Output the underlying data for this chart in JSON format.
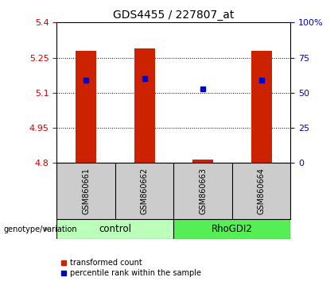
{
  "title": "GDS4455 / 227807_at",
  "samples": [
    "GSM860661",
    "GSM860662",
    "GSM860663",
    "GSM860664"
  ],
  "groups": [
    "control",
    "control",
    "RhoGDI2",
    "RhoGDI2"
  ],
  "group_labels": [
    "control",
    "RhoGDI2"
  ],
  "group_colors_light": [
    "#bbffbb",
    "#55ee55"
  ],
  "bar_bottom": 4.8,
  "bar_tops": [
    5.28,
    5.29,
    4.815,
    5.28
  ],
  "percentile_values": [
    5.155,
    5.16,
    5.115,
    5.155
  ],
  "ylim_left": [
    4.8,
    5.4
  ],
  "ylim_right": [
    0,
    100
  ],
  "yticks_left": [
    4.8,
    4.95,
    5.1,
    5.25,
    5.4
  ],
  "yticks_right": [
    0,
    25,
    50,
    75,
    100
  ],
  "ytick_labels_left": [
    "4.8",
    "4.95",
    "5.1",
    "5.25",
    "5.4"
  ],
  "ytick_labels_right": [
    "0",
    "25",
    "50",
    "75",
    "100%"
  ],
  "left_tick_color": "#cc0000",
  "right_tick_color": "#0000cc",
  "bar_color": "#cc2200",
  "percentile_color": "#0000cc",
  "legend_labels": [
    "transformed count",
    "percentile rank within the sample"
  ],
  "xlabel_left": "genotype/variation",
  "sample_area_color": "#cccccc",
  "bar_width": 0.35
}
